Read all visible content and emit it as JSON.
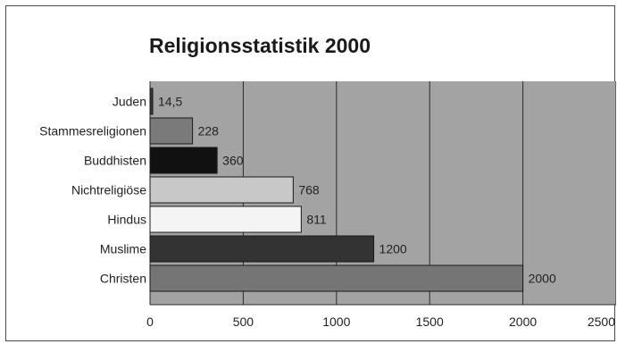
{
  "chart_data": {
    "type": "bar",
    "orientation": "horizontal",
    "title": "Religionsstatistik 2000",
    "categories": [
      "Juden",
      "Stammesreligionen",
      "Buddhisten",
      "Nichtreligiöse",
      "Hindus",
      "Muslime",
      "Christen"
    ],
    "values": [
      14.5,
      228,
      360,
      768,
      811,
      1200,
      2000
    ],
    "value_labels": [
      "14,5",
      "228",
      "360",
      "768",
      "811",
      "1200",
      "2000"
    ],
    "bar_colors": [
      "#3a3a3a",
      "#7a7a7a",
      "#111111",
      "#c8c8c8",
      "#f4f4f4",
      "#333333",
      "#757575"
    ],
    "xlim": [
      0,
      2500
    ],
    "xticks": [
      0,
      500,
      1000,
      1500,
      2000,
      2500
    ],
    "xtick_labels": [
      "0",
      "500",
      "1000",
      "1500",
      "2000",
      "2500"
    ],
    "grid": "vertical",
    "plot_background": "#a3a3a3",
    "legend": "none"
  }
}
